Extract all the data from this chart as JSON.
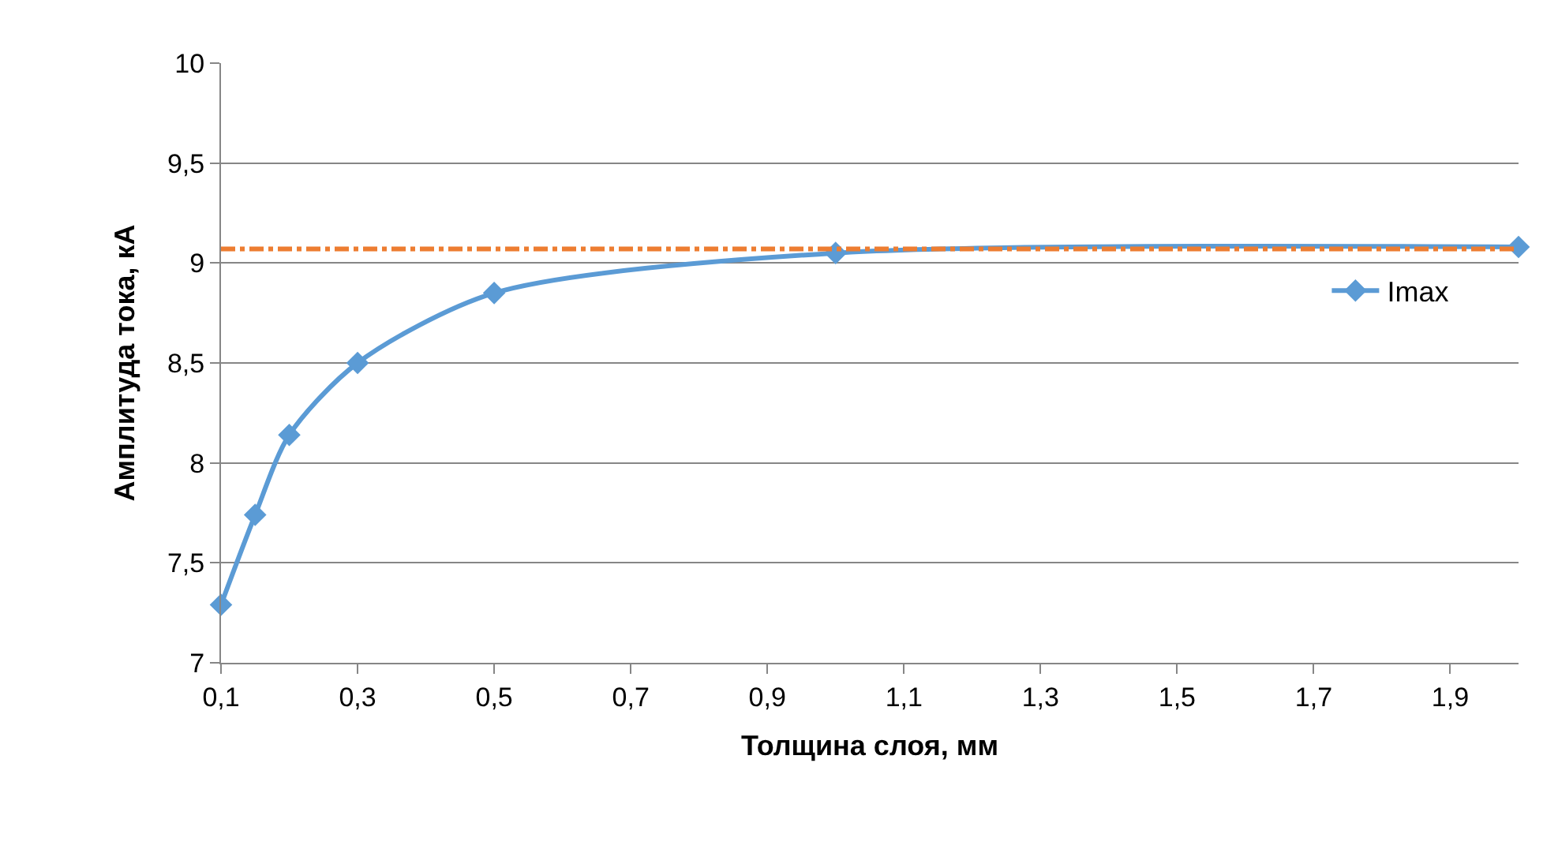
{
  "chart_data": {
    "type": "line",
    "xlabel": "Толщина слоя, мм",
    "ylabel": "Амплитуда тока, кА",
    "x": [
      0.1,
      0.15,
      0.2,
      0.3,
      0.5,
      1.0,
      2.0
    ],
    "series": [
      {
        "name": "Imax",
        "color": "#5b9bd5",
        "values": [
          7.29,
          7.74,
          8.14,
          8.5,
          8.85,
          9.05,
          9.08
        ]
      }
    ],
    "ref_lines": [
      {
        "axis": "y",
        "value": 9.07,
        "label": null,
        "color": "#ed7d31",
        "line_style": "dashdot"
      }
    ],
    "xlim": [
      0.1,
      2.0
    ],
    "xticks": [
      {
        "value": 0.1,
        "label": "0,1"
      },
      {
        "value": 0.3,
        "label": "0,3"
      },
      {
        "value": 0.5,
        "label": "0,5"
      },
      {
        "value": 0.7,
        "label": "0,7"
      },
      {
        "value": 0.9,
        "label": "0,9"
      },
      {
        "value": 1.1,
        "label": "1,1"
      },
      {
        "value": 1.3,
        "label": "1,3"
      },
      {
        "value": 1.5,
        "label": "1,5"
      },
      {
        "value": 1.7,
        "label": "1,7"
      },
      {
        "value": 1.9,
        "label": "1,9"
      }
    ],
    "ylim": [
      7,
      10
    ],
    "yticks": [
      7,
      {
        "value": 7.5,
        "label": "7,5"
      },
      8,
      {
        "value": 8.5,
        "label": "8,5"
      },
      9,
      {
        "value": 9.5,
        "label": "9,5"
      },
      10
    ],
    "grid": "y",
    "legend": "right",
    "marker": "diamond",
    "line_style": "solid"
  }
}
